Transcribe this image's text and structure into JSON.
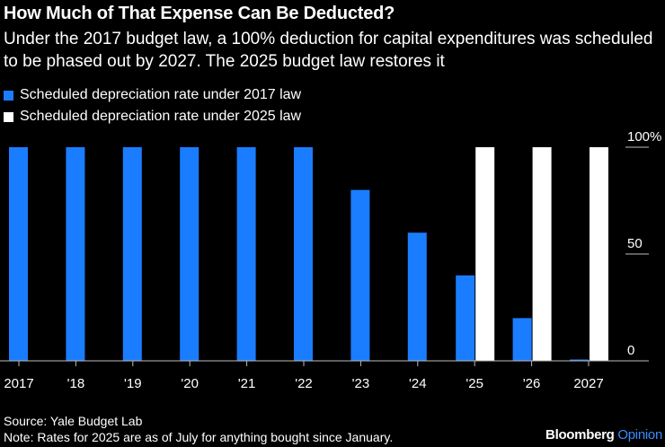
{
  "header": {
    "title": "How Much of That Expense Can Be Deducted?",
    "subtitle": "Under the 2017 budget law, a 100% deduction for capital expenditures was scheduled to be phased out by 2027. The 2025 budget law restores it"
  },
  "colors": {
    "series_2017": "#1a7dff",
    "series_2025": "#ffffff",
    "background": "#000000",
    "axis": "#bbbbbb"
  },
  "chart_data": {
    "type": "bar",
    "title": "How Much of That Expense Can Be Deducted?",
    "xlabel": "",
    "ylabel": "",
    "ylim": [
      0,
      100
    ],
    "y_ticks": [
      0,
      50,
      100
    ],
    "y_tick_labels": [
      "0",
      "50",
      "100%"
    ],
    "categories": [
      "2017",
      "'18",
      "'19",
      "'20",
      "'21",
      "'22",
      "'23",
      "'24",
      "'25",
      "'26",
      "2027"
    ],
    "series": [
      {
        "name": "Scheduled depreciation rate under 2017 law",
        "values": [
          100,
          100,
          100,
          100,
          100,
          100,
          80,
          60,
          40,
          20,
          0
        ]
      },
      {
        "name": "Scheduled depreciation rate under 2025 law",
        "values": [
          null,
          null,
          null,
          null,
          null,
          null,
          null,
          null,
          100,
          100,
          100
        ]
      }
    ],
    "legend_position": "top-left"
  },
  "footer": {
    "source": "Source: Yale Budget Lab",
    "note": "Note: Rates for 2025 are as of July for anything bought since January."
  },
  "brand": {
    "name": "Bloomberg",
    "section": "Opinion"
  }
}
